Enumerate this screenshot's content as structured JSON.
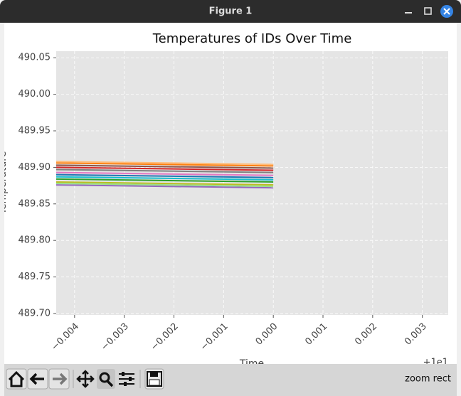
{
  "window": {
    "title": "Figure 1"
  },
  "toolbar": {
    "status": "zoom rect"
  },
  "chart_data": {
    "type": "line",
    "title": "Temperatures of IDs Over Time",
    "x_label": "Time",
    "y_label": "Temperature",
    "x_offset_label": "+1e1",
    "x": [
      -0.00437,
      0.0
    ],
    "series": [
      {
        "color": "#1f77b4",
        "values": [
          489.89,
          489.886
        ]
      },
      {
        "color": "#ff7f0e",
        "values": [
          489.906,
          489.902
        ]
      },
      {
        "color": "#2ca02c",
        "values": [
          489.884,
          489.88
        ]
      },
      {
        "color": "#d62728",
        "values": [
          489.9,
          489.896
        ]
      },
      {
        "color": "#9467bd",
        "values": [
          489.876,
          489.872
        ]
      },
      {
        "color": "#8c564b",
        "values": [
          489.903,
          489.899
        ]
      },
      {
        "color": "#e377c2",
        "values": [
          489.893,
          489.889
        ]
      },
      {
        "color": "#7f7f7f",
        "values": [
          489.897,
          489.893
        ]
      },
      {
        "color": "#bcbd22",
        "values": [
          489.88,
          489.876
        ]
      },
      {
        "color": "#17becf",
        "values": [
          489.887,
          489.883
        ]
      },
      {
        "color": "#ffbb78",
        "values": [
          489.908,
          489.904
        ]
      },
      {
        "color": "#98df8a",
        "values": [
          489.878,
          489.874
        ]
      }
    ],
    "xlim": [
      -0.00437,
      0.00352
    ],
    "xticks": [
      {
        "value": -0.004,
        "label": "−0.004"
      },
      {
        "value": -0.003,
        "label": "−0.003"
      },
      {
        "value": -0.002,
        "label": "−0.002"
      },
      {
        "value": -0.001,
        "label": "−0.001"
      },
      {
        "value": 0.0,
        "label": "0.000"
      },
      {
        "value": 0.001,
        "label": "0.001"
      },
      {
        "value": 0.002,
        "label": "0.002"
      },
      {
        "value": 0.003,
        "label": "0.003"
      }
    ],
    "ylim": [
      489.698,
      490.059
    ],
    "yticks": [
      {
        "value": 489.7,
        "label": "489.70"
      },
      489.75,
      {
        "value": 489.8,
        "label": "489.80"
      },
      489.85,
      {
        "value": 489.9,
        "label": "489.90"
      },
      489.95,
      {
        "value": 490.0,
        "label": "490.00"
      },
      490.05
    ],
    "grid": true,
    "background": "#e5e5e5"
  }
}
